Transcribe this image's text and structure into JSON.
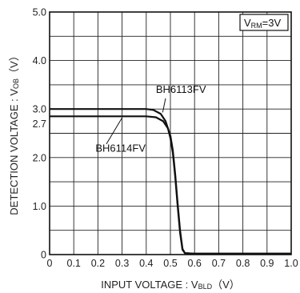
{
  "chart_data": {
    "type": "line",
    "xlabel": "INPUT VOLTAGE : V",
    "xlabel_sub": "BLD",
    "xlabel_unit": "（V）",
    "ylabel": "DETECTION VOLTAGE : V",
    "ylabel_sub": "OB",
    "ylabel_unit": "（V）",
    "xlim": [
      0,
      1.0
    ],
    "ylim": [
      0,
      5.0
    ],
    "x_ticks": [
      "0",
      "0.1",
      "0.2",
      "0.3",
      "0.4",
      "0.5",
      "0.6",
      "0.7",
      "0.8",
      "0.9",
      "1.0"
    ],
    "y_ticks": [
      {
        "value": 0,
        "label": "0"
      },
      {
        "value": 1.0,
        "label": "1.0"
      },
      {
        "value": 2.0,
        "label": "2.0"
      },
      {
        "value": 2.7,
        "label": "2.7"
      },
      {
        "value": 3.0,
        "label": "3.0"
      },
      {
        "value": 4.0,
        "label": "4.0"
      },
      {
        "value": 5.0,
        "label": "5.0"
      }
    ],
    "grid": true,
    "condition": {
      "prefix": "V",
      "sub": "RM",
      "suffix": "=3V"
    },
    "series": [
      {
        "name": "BH6113FV",
        "x": [
          0,
          0.1,
          0.2,
          0.3,
          0.4,
          0.43,
          0.46,
          0.48,
          0.5,
          0.51,
          0.52,
          0.53,
          0.54,
          0.55,
          0.56,
          0.6,
          0.7,
          0.8,
          0.9,
          1.0
        ],
        "y": [
          3.0,
          3.0,
          3.0,
          3.0,
          3.0,
          2.98,
          2.9,
          2.75,
          2.45,
          2.15,
          1.65,
          1.05,
          0.5,
          0.12,
          0.03,
          0.02,
          0.02,
          0.02,
          0.02,
          0.02
        ]
      },
      {
        "name": "BH6114FV",
        "x": [
          0,
          0.1,
          0.2,
          0.3,
          0.4,
          0.44,
          0.47,
          0.49,
          0.5,
          0.51,
          0.52,
          0.53,
          0.54,
          0.55,
          0.56,
          0.6,
          0.7,
          0.8,
          0.9,
          1.0
        ],
        "y": [
          2.85,
          2.85,
          2.85,
          2.85,
          2.85,
          2.83,
          2.75,
          2.6,
          2.4,
          2.1,
          1.6,
          1.0,
          0.45,
          0.1,
          0.03,
          0.02,
          0.02,
          0.02,
          0.02,
          0.02
        ]
      }
    ],
    "annotations": [
      {
        "text": "BH6113FV",
        "series": 0
      },
      {
        "text": "BH6114FV",
        "series": 1
      }
    ]
  }
}
